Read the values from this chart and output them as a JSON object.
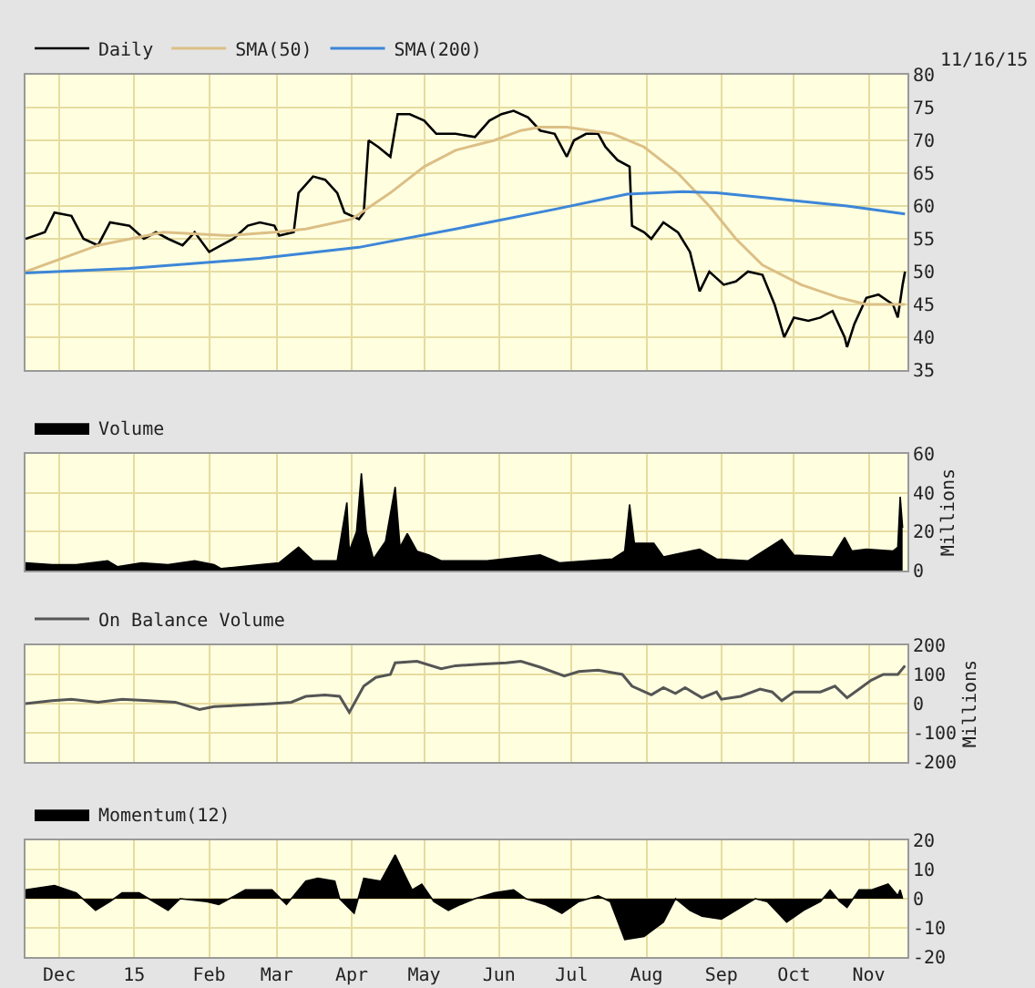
{
  "chart_data": [
    {
      "type": "line",
      "legend": "top left",
      "grid": true,
      "tick_labels": "y",
      "annotations": [
        "11/16/15"
      ],
      "xlim": [
        "2014-11-17",
        "2015-11-17"
      ],
      "xticks": [
        {
          "value": "2014-12-01",
          "label": null
        },
        {
          "value": "2015-01-01",
          "label": null
        },
        {
          "value": "2015-02-01",
          "label": null
        },
        {
          "value": "2015-03-01",
          "label": null
        },
        {
          "value": "2015-04-01",
          "label": null
        },
        {
          "value": "2015-05-01",
          "label": null
        },
        {
          "value": "2015-06-01",
          "label": null
        },
        {
          "value": "2015-07-01",
          "label": null
        },
        {
          "value": "2015-08-01",
          "label": null
        },
        {
          "value": "2015-09-01",
          "label": null
        },
        {
          "value": "2015-10-01",
          "label": null
        },
        {
          "value": "2015-11-01",
          "label": null
        }
      ],
      "ylim": [
        35,
        80
      ],
      "yticks": [
        35,
        40,
        45,
        50,
        55,
        60,
        65,
        70,
        75,
        80
      ],
      "series": [
        {
          "name": "Daily",
          "color": "#000000",
          "x": [
            "2014-11-17",
            "2014-11-25",
            "2014-11-29",
            "2014-12-06",
            "2014-12-11",
            "2014-12-17",
            "2014-12-22",
            "2014-12-30",
            "2015-01-05",
            "2015-01-10",
            "2015-01-15",
            "2015-01-21",
            "2015-01-26",
            "2015-02-01",
            "2015-02-06",
            "2015-02-11",
            "2015-02-17",
            "2015-02-22",
            "2015-02-28",
            "2015-03-02",
            "2015-03-08",
            "2015-03-10",
            "2015-03-16",
            "2015-03-21",
            "2015-03-26",
            "2015-03-29",
            "2015-04-04",
            "2015-04-06",
            "2015-04-08",
            "2015-04-12",
            "2015-04-17",
            "2015-04-20",
            "2015-04-25",
            "2015-05-01",
            "2015-05-06",
            "2015-05-14",
            "2015-05-22",
            "2015-05-28",
            "2015-06-02",
            "2015-06-07",
            "2015-06-13",
            "2015-06-18",
            "2015-06-24",
            "2015-06-29",
            "2015-07-02",
            "2015-07-07",
            "2015-07-12",
            "2015-07-15",
            "2015-07-20",
            "2015-07-25",
            "2015-07-26",
            "2015-07-31",
            "2015-08-03",
            "2015-08-08",
            "2015-08-14",
            "2015-08-19",
            "2015-08-23",
            "2015-08-27",
            "2015-09-02",
            "2015-09-07",
            "2015-09-12",
            "2015-09-18",
            "2015-09-23",
            "2015-09-27",
            "2015-10-01",
            "2015-10-07",
            "2015-10-12",
            "2015-10-17",
            "2015-10-22",
            "2015-10-23",
            "2015-10-26",
            "2015-10-31",
            "2015-11-05",
            "2015-11-11",
            "2015-11-13",
            "2015-11-15",
            "2015-11-16"
          ],
          "values": [
            55,
            56,
            59,
            58.5,
            55,
            54,
            57.5,
            57,
            55,
            56,
            55,
            54,
            56,
            53,
            54,
            55,
            57,
            57.5,
            57,
            55.5,
            56,
            62,
            64.5,
            64,
            62,
            59,
            58,
            59,
            70,
            69,
            67.5,
            74,
            74,
            73,
            71,
            71,
            70.5,
            73,
            74,
            74.5,
            73.5,
            71.5,
            71,
            67.5,
            70,
            71,
            71,
            69,
            67,
            66,
            57,
            56,
            55,
            57.5,
            56,
            53,
            47,
            50,
            48,
            48.5,
            50,
            49.5,
            45,
            40,
            43,
            42.5,
            43,
            44,
            40,
            38.5,
            42,
            46,
            46.5,
            45,
            43,
            48,
            50
          ]
        },
        {
          "name": "SMA(50)",
          "color": "#dcbf86",
          "x": [
            "2014-11-17",
            "2014-12-17",
            "2015-01-13",
            "2015-02-09",
            "2015-02-28",
            "2015-03-13",
            "2015-04-01",
            "2015-04-17",
            "2015-05-01",
            "2015-05-14",
            "2015-05-30",
            "2015-06-10",
            "2015-06-18",
            "2015-06-29",
            "2015-07-18",
            "2015-07-31",
            "2015-08-14",
            "2015-08-27",
            "2015-09-07",
            "2015-09-18",
            "2015-10-04",
            "2015-10-20",
            "2015-10-31",
            "2015-11-16"
          ],
          "values": [
            50,
            54,
            56,
            55.5,
            56,
            56.5,
            58,
            62,
            66,
            68.5,
            70,
            71.5,
            72,
            72,
            71,
            69,
            65,
            60,
            55,
            51,
            48,
            46,
            45,
            45
          ]
        },
        {
          "name": "SMA(200)",
          "color": "#3d86d8",
          "x": [
            "2014-11-17",
            "2014-12-30",
            "2015-02-22",
            "2015-04-04",
            "2015-05-14",
            "2015-06-24",
            "2015-07-24",
            "2015-08-16",
            "2015-08-30",
            "2015-09-26",
            "2015-10-23",
            "2015-11-16"
          ],
          "values": [
            49.8,
            50.5,
            52,
            53.7,
            56.5,
            59.5,
            61.8,
            62.2,
            62,
            61,
            60,
            58.8
          ]
        }
      ]
    },
    {
      "type": "area",
      "legend": "top left",
      "grid": true,
      "tick_labels": "y",
      "ylabel": "Millions",
      "xlim": [
        "2014-11-17",
        "2015-11-17"
      ],
      "xticks": [
        {
          "value": "2014-12-01",
          "label": null
        },
        {
          "value": "2015-01-01",
          "label": null
        },
        {
          "value": "2015-02-01",
          "label": null
        },
        {
          "value": "2015-03-01",
          "label": null
        },
        {
          "value": "2015-04-01",
          "label": null
        },
        {
          "value": "2015-05-01",
          "label": null
        },
        {
          "value": "2015-06-01",
          "label": null
        },
        {
          "value": "2015-07-01",
          "label": null
        },
        {
          "value": "2015-08-01",
          "label": null
        },
        {
          "value": "2015-09-01",
          "label": null
        },
        {
          "value": "2015-10-01",
          "label": null
        },
        {
          "value": "2015-11-01",
          "label": null
        }
      ],
      "ylim": [
        0,
        60
      ],
      "yticks": [
        0,
        20,
        40,
        60
      ],
      "series": [
        {
          "name": "Volume",
          "color": "#000000",
          "x": [
            "2014-11-17",
            "2014-11-28",
            "2014-12-08",
            "2014-12-21",
            "2014-12-25",
            "2015-01-04",
            "2015-01-15",
            "2015-01-26",
            "2015-02-03",
            "2015-02-06",
            "2015-02-22",
            "2015-03-02",
            "2015-03-10",
            "2015-03-16",
            "2015-03-26",
            "2015-03-30",
            "2015-03-31",
            "2015-04-03",
            "2015-04-05",
            "2015-04-07",
            "2015-04-10",
            "2015-04-15",
            "2015-04-19",
            "2015-04-21",
            "2015-04-24",
            "2015-04-28",
            "2015-05-03",
            "2015-05-08",
            "2015-05-27",
            "2015-06-18",
            "2015-06-26",
            "2015-07-18",
            "2015-07-23",
            "2015-07-25",
            "2015-07-27",
            "2015-08-04",
            "2015-08-08",
            "2015-08-23",
            "2015-08-30",
            "2015-09-12",
            "2015-09-26",
            "2015-10-01",
            "2015-10-17",
            "2015-10-22",
            "2015-10-25",
            "2015-10-31",
            "2015-11-11",
            "2015-11-13",
            "2015-11-14",
            "2015-11-15"
          ],
          "values": [
            4,
            3,
            3,
            5,
            2,
            4,
            3,
            5,
            3,
            1,
            3,
            4,
            12,
            5,
            5,
            35,
            10,
            20,
            50,
            20,
            6,
            15,
            43,
            12,
            19,
            10,
            8,
            5,
            5,
            8,
            4,
            6,
            10,
            34,
            14,
            14,
            7,
            11,
            6,
            5,
            16,
            8,
            7,
            17,
            10,
            11,
            10,
            12,
            38,
            22
          ]
        }
      ]
    },
    {
      "type": "line",
      "legend": "top left",
      "grid": true,
      "tick_labels": "y",
      "ylabel": "Millions",
      "xlim": [
        "2014-11-17",
        "2015-11-17"
      ],
      "xticks": [
        {
          "value": "2014-12-01",
          "label": null
        },
        {
          "value": "2015-01-01",
          "label": null
        },
        {
          "value": "2015-02-01",
          "label": null
        },
        {
          "value": "2015-03-01",
          "label": null
        },
        {
          "value": "2015-04-01",
          "label": null
        },
        {
          "value": "2015-05-01",
          "label": null
        },
        {
          "value": "2015-06-01",
          "label": null
        },
        {
          "value": "2015-07-01",
          "label": null
        },
        {
          "value": "2015-08-01",
          "label": null
        },
        {
          "value": "2015-09-01",
          "label": null
        },
        {
          "value": "2015-10-01",
          "label": null
        },
        {
          "value": "2015-11-01",
          "label": null
        }
      ],
      "ylim": [
        -200,
        200
      ],
      "yticks": [
        -200,
        -100,
        0,
        100,
        200
      ],
      "series": [
        {
          "name": "On Balance Volume",
          "color": "#555555",
          "x": [
            "2014-11-17",
            "2014-11-28",
            "2014-12-06",
            "2014-12-17",
            "2014-12-27",
            "2015-01-07",
            "2015-01-18",
            "2015-01-28",
            "2015-02-03",
            "2015-02-16",
            "2015-02-27",
            "2015-03-07",
            "2015-03-13",
            "2015-03-21",
            "2015-03-27",
            "2015-03-31",
            "2015-04-06",
            "2015-04-11",
            "2015-04-17",
            "2015-04-19",
            "2015-04-28",
            "2015-05-08",
            "2015-05-14",
            "2015-05-24",
            "2015-06-04",
            "2015-06-10",
            "2015-06-18",
            "2015-06-28",
            "2015-07-04",
            "2015-07-12",
            "2015-07-22",
            "2015-07-26",
            "2015-08-03",
            "2015-08-08",
            "2015-08-13",
            "2015-08-17",
            "2015-08-24",
            "2015-08-30",
            "2015-09-01",
            "2015-09-09",
            "2015-09-17",
            "2015-09-22",
            "2015-09-26",
            "2015-10-01",
            "2015-10-12",
            "2015-10-18",
            "2015-10-23",
            "2015-10-28",
            "2015-11-02",
            "2015-11-07",
            "2015-11-13",
            "2015-11-16"
          ],
          "values": [
            0,
            10,
            15,
            5,
            15,
            10,
            5,
            -20,
            -10,
            -5,
            0,
            5,
            25,
            30,
            25,
            -30,
            60,
            90,
            100,
            140,
            145,
            120,
            130,
            135,
            140,
            145,
            125,
            95,
            110,
            115,
            100,
            60,
            30,
            55,
            35,
            55,
            20,
            40,
            15,
            25,
            50,
            40,
            10,
            40,
            40,
            60,
            20,
            50,
            80,
            100,
            100,
            130
          ]
        }
      ]
    },
    {
      "type": "area",
      "legend": "top left",
      "grid": true,
      "xlim": [
        "2014-11-17",
        "2015-11-17"
      ],
      "xticks": [
        {
          "value": "2014-12-01",
          "label": "Dec"
        },
        {
          "value": "2015-01-01",
          "label": "15"
        },
        {
          "value": "2015-02-01",
          "label": "Feb"
        },
        {
          "value": "2015-03-01",
          "label": "Mar"
        },
        {
          "value": "2015-04-01",
          "label": "Apr"
        },
        {
          "value": "2015-05-01",
          "label": "May"
        },
        {
          "value": "2015-06-01",
          "label": "Jun"
        },
        {
          "value": "2015-07-01",
          "label": "Jul"
        },
        {
          "value": "2015-08-01",
          "label": "Aug"
        },
        {
          "value": "2015-09-01",
          "label": "Sep"
        },
        {
          "value": "2015-10-01",
          "label": "Oct"
        },
        {
          "value": "2015-11-01",
          "label": "Nov"
        }
      ],
      "ylim": [
        -20,
        20
      ],
      "yticks": [
        -20,
        -10,
        0,
        10,
        20
      ],
      "series": [
        {
          "name": "Momentum(12)",
          "color": "#000000",
          "x": [
            "2014-11-17",
            "2014-11-29",
            "2014-12-08",
            "2014-12-16",
            "2014-12-22",
            "2014-12-27",
            "2015-01-03",
            "2015-01-07",
            "2015-01-15",
            "2015-01-20",
            "2015-01-31",
            "2015-02-05",
            "2015-02-16",
            "2015-02-27",
            "2015-03-05",
            "2015-03-13",
            "2015-03-18",
            "2015-03-25",
            "2015-03-27",
            "2015-04-02",
            "2015-04-06",
            "2015-04-13",
            "2015-04-19",
            "2015-04-23",
            "2015-04-26",
            "2015-04-30",
            "2015-05-05",
            "2015-05-11",
            "2015-05-16",
            "2015-05-22",
            "2015-05-30",
            "2015-06-07",
            "2015-06-12",
            "2015-06-20",
            "2015-06-27",
            "2015-07-04",
            "2015-07-12",
            "2015-07-17",
            "2015-07-23",
            "2015-07-31",
            "2015-08-08",
            "2015-08-13",
            "2015-08-19",
            "2015-08-24",
            "2015-09-01",
            "2015-09-09",
            "2015-09-15",
            "2015-09-20",
            "2015-09-28",
            "2015-10-05",
            "2015-10-12",
            "2015-10-16",
            "2015-10-20",
            "2015-10-23",
            "2015-10-28",
            "2015-11-02",
            "2015-11-09",
            "2015-11-13",
            "2015-11-14",
            "2015-11-15"
          ],
          "values": [
            3,
            4.5,
            2,
            -4,
            -1,
            2,
            2,
            0,
            -4,
            0,
            -1,
            -2,
            3,
            3,
            -2,
            6,
            7,
            6,
            0,
            -5,
            7,
            6,
            15,
            8,
            3,
            5,
            -1,
            -4,
            -2,
            0,
            2,
            3,
            0,
            -2,
            -5,
            -1,
            1,
            -1,
            -14,
            -13,
            -8,
            0,
            -4,
            -6,
            -7,
            -3,
            0,
            -1,
            -8,
            -4,
            -1,
            3,
            -1,
            -3,
            3,
            3,
            5,
            1,
            3,
            0
          ]
        }
      ]
    }
  ]
}
